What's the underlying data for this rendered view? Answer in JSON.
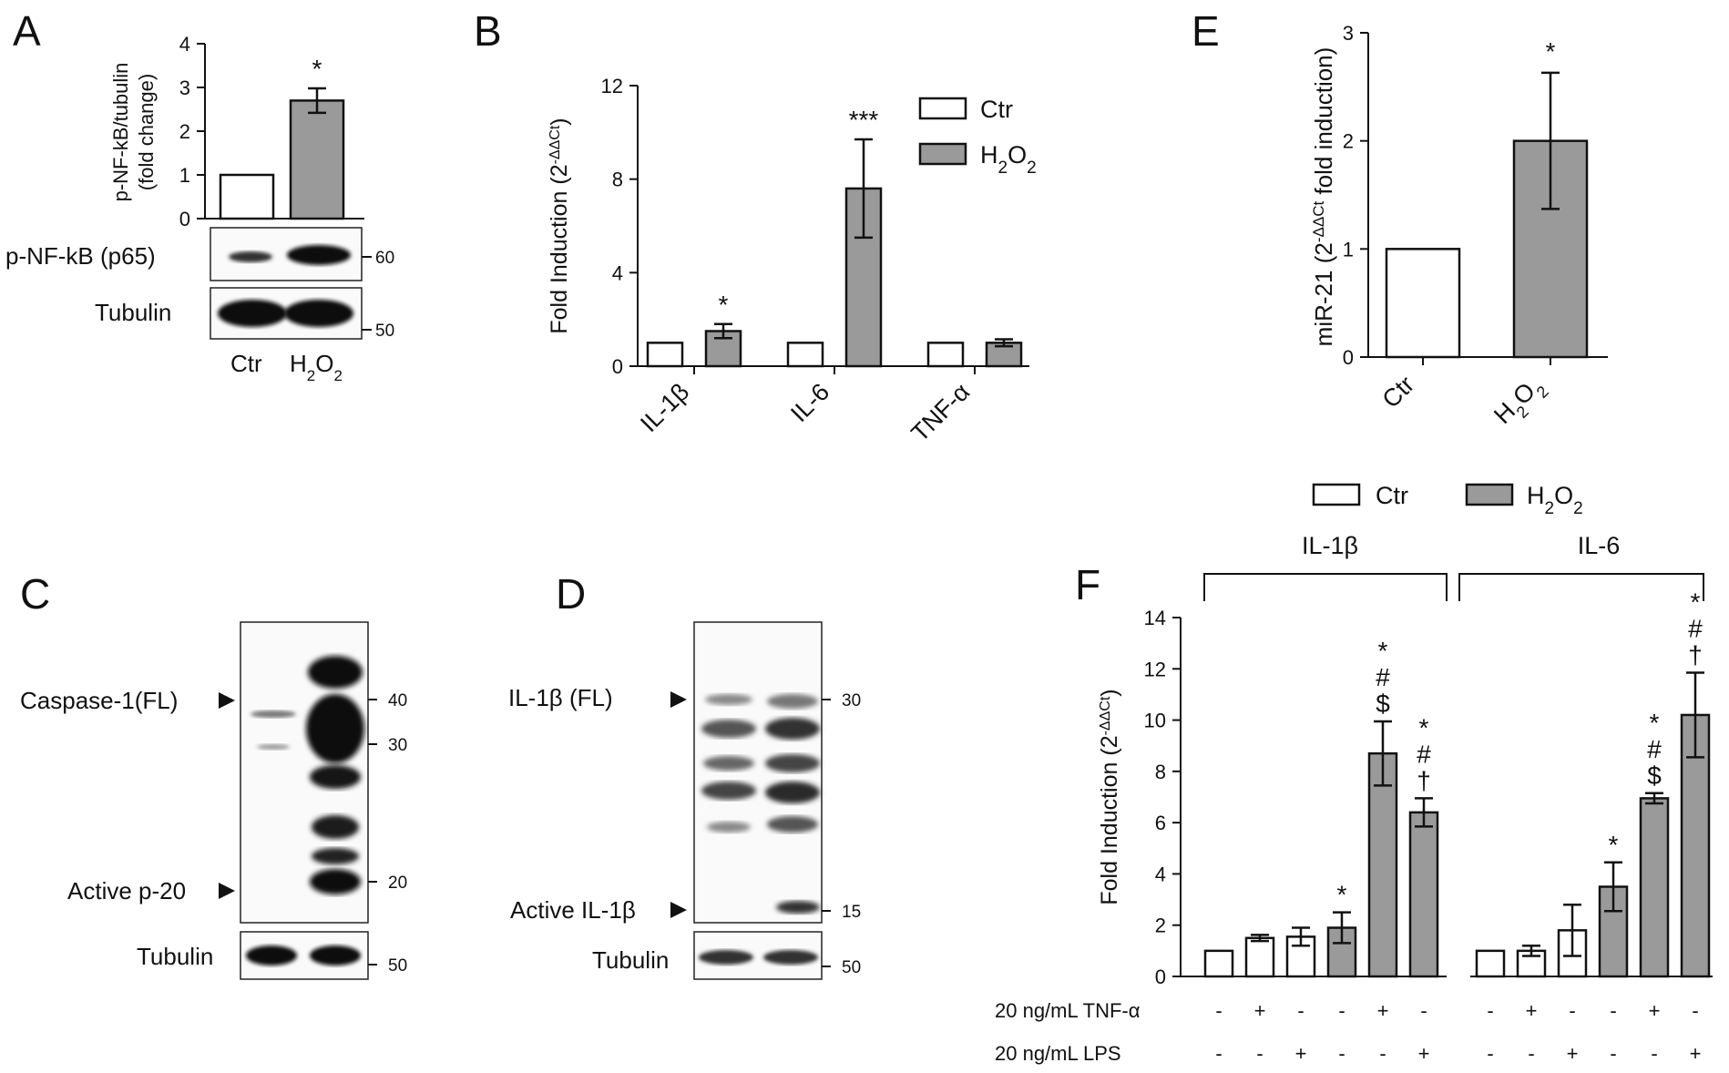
{
  "panel_letters": [
    "A",
    "B",
    "C",
    "D",
    "E",
    "F"
  ],
  "legend": {
    "ctr": "Ctr",
    "h2o2": "H2O2"
  },
  "colors": {
    "ctr": "#ffffff",
    "h2o2": "#9a9a9a",
    "ink": "#111111"
  },
  "chart_data": [
    {
      "panel": "A",
      "type": "bar",
      "categories": [
        "Ctr",
        "H2O2"
      ],
      "values": [
        1.0,
        2.7
      ],
      "errors": [
        0,
        0.28
      ],
      "significance": [
        "",
        "*"
      ],
      "ylabel": [
        "p-NF-kB/tubulin",
        "(fold change)"
      ],
      "ylim": [
        0,
        4
      ],
      "yticks": [
        "0",
        "1",
        "2",
        "3",
        "4"
      ]
    },
    {
      "panel": "B",
      "type": "bar",
      "categories": [
        "IL-1β",
        "IL-6",
        "TNF-α"
      ],
      "series": [
        {
          "name": "Ctr",
          "values": [
            1.0,
            1.0,
            1.0
          ],
          "errors": [
            0,
            0,
            0
          ]
        },
        {
          "name": "H2O2",
          "values": [
            1.5,
            7.6,
            1.0
          ],
          "errors": [
            0.3,
            2.1,
            0.15
          ]
        }
      ],
      "significance": [
        "*",
        "***",
        ""
      ],
      "ylabel": "Fold Induction (2-ΔΔCt)",
      "ylim": [
        0,
        12
      ],
      "yticks": [
        "0",
        "4",
        "8",
        "12"
      ],
      "legend_position": "top-right"
    },
    {
      "panel": "E",
      "type": "bar",
      "categories": [
        "Ctr",
        "H2O2"
      ],
      "values": [
        1.0,
        2.0
      ],
      "errors": [
        0,
        0.63
      ],
      "significance": [
        "",
        "*"
      ],
      "ylabel": "miR-21 (2-ΔΔCt fold induction)",
      "ylim": [
        0,
        3
      ],
      "yticks": [
        "0",
        "1",
        "2",
        "3"
      ]
    },
    {
      "panel": "F",
      "type": "bar",
      "groups": [
        "IL-1β",
        "IL-6"
      ],
      "ylabel": "Fold Induction (2-ΔΔCt)",
      "ylim": [
        0,
        14
      ],
      "yticks": [
        "0",
        "2",
        "4",
        "6",
        "8",
        "10",
        "12",
        "14"
      ],
      "legend_position": "top",
      "bars": [
        {
          "group": "IL-1β",
          "series": "Ctr",
          "value": 1.0,
          "error": 0,
          "sig": []
        },
        {
          "group": "IL-1β",
          "series": "Ctr",
          "value": 1.5,
          "error": 0.12,
          "sig": []
        },
        {
          "group": "IL-1β",
          "series": "Ctr",
          "value": 1.55,
          "error": 0.35,
          "sig": []
        },
        {
          "group": "IL-1β",
          "series": "H2O2",
          "value": 1.9,
          "error": 0.6,
          "sig": [
            "*"
          ]
        },
        {
          "group": "IL-1β",
          "series": "H2O2",
          "value": 8.7,
          "error": 1.25,
          "sig": [
            "*",
            "#",
            "$"
          ]
        },
        {
          "group": "IL-1β",
          "series": "H2O2",
          "value": 6.4,
          "error": 0.55,
          "sig": [
            "*",
            "#",
            "†"
          ]
        },
        {
          "group": "IL-6",
          "series": "Ctr",
          "value": 1.0,
          "error": 0,
          "sig": []
        },
        {
          "group": "IL-6",
          "series": "Ctr",
          "value": 1.0,
          "error": 0.2,
          "sig": []
        },
        {
          "group": "IL-6",
          "series": "Ctr",
          "value": 1.8,
          "error": 1.0,
          "sig": []
        },
        {
          "group": "IL-6",
          "series": "H2O2",
          "value": 3.5,
          "error": 0.95,
          "sig": [
            "*"
          ]
        },
        {
          "group": "IL-6",
          "series": "H2O2",
          "value": 6.95,
          "error": 0.2,
          "sig": [
            "*",
            "#",
            "$"
          ]
        },
        {
          "group": "IL-6",
          "series": "H2O2",
          "value": 10.2,
          "error": 1.65,
          "sig": [
            "*",
            "#",
            "†"
          ]
        }
      ],
      "treatment_rows": [
        {
          "label": "20 ng/mL TNF-α",
          "signs": [
            "-",
            "+",
            "-",
            "-",
            "+",
            "-",
            "-",
            "+",
            "-",
            "-",
            "+",
            "-"
          ]
        },
        {
          "label": "20 ng/mL LPS",
          "signs": [
            "-",
            "-",
            "+",
            "-",
            "-",
            "+",
            "-",
            "-",
            "+",
            "-",
            "-",
            "+"
          ]
        }
      ]
    }
  ],
  "blots": {
    "A": {
      "rows": [
        "p-NF-kB (p65)",
        "Tubulin"
      ],
      "markers": [
        "60",
        "50"
      ],
      "lanes": [
        "Ctr",
        "H2O2"
      ]
    },
    "C": {
      "labels": [
        "Caspase-1(FL)",
        "Active p-20",
        "Tubulin"
      ],
      "markers": [
        "40",
        "30",
        "20",
        "50"
      ]
    },
    "D": {
      "labels": [
        "IL-1β (FL)",
        "Active IL-1β",
        "Tubulin"
      ],
      "markers": [
        "30",
        "15",
        "50"
      ]
    }
  }
}
